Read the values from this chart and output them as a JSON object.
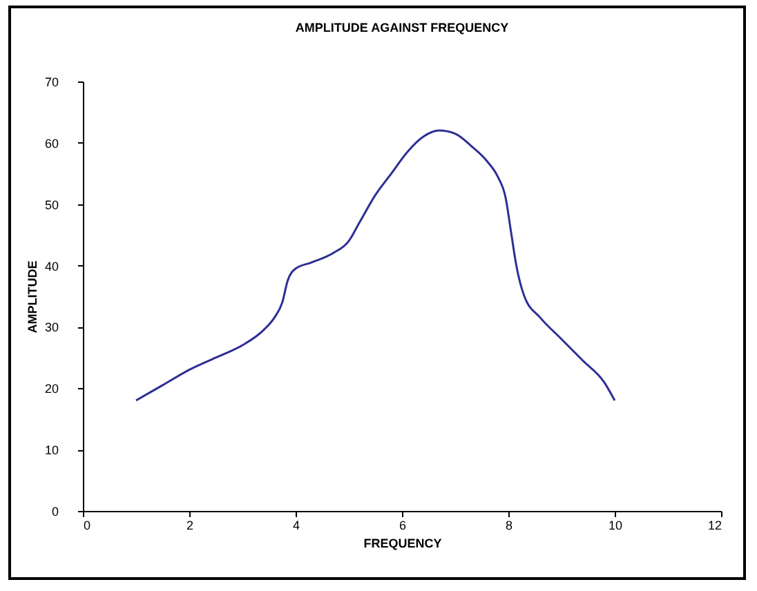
{
  "chart_data": {
    "type": "line",
    "title": "AMPLITUDE AGAINST FREQUENCY",
    "xlabel": "FREQUENCY",
    "ylabel": "AMPLITUDE",
    "x": [
      1,
      1.5,
      2,
      2.5,
      3,
      3.4,
      3.6,
      3.75,
      3.85,
      4,
      4.3,
      4.7,
      5,
      5.2,
      5.5,
      5.8,
      6.1,
      6.4,
      6.7,
      7,
      7.3,
      7.6,
      7.8,
      7.95,
      8.05,
      8.15,
      8.3,
      8.6,
      9,
      9.4,
      9.8,
      10
    ],
    "series": [
      {
        "color": "#2e2e96",
        "values": [
          18,
          20.5,
          23,
          25,
          27,
          29.5,
          31.5,
          34,
          37.5,
          39.5,
          40.5,
          42,
          44,
          47,
          51.5,
          55,
          58.5,
          61,
          62,
          61.5,
          59.5,
          57,
          54.5,
          51,
          45.5,
          40,
          35,
          31.5,
          28,
          24.5,
          21,
          18
        ]
      }
    ],
    "xlim": [
      0,
      12
    ],
    "xticks": [
      0,
      2,
      4,
      6,
      8,
      10,
      12
    ],
    "ylim": [
      0,
      70
    ],
    "yticks": [
      0,
      10,
      20,
      30,
      40,
      50,
      60,
      70
    ],
    "grid": false,
    "marker": "none",
    "line_style": "solid"
  }
}
